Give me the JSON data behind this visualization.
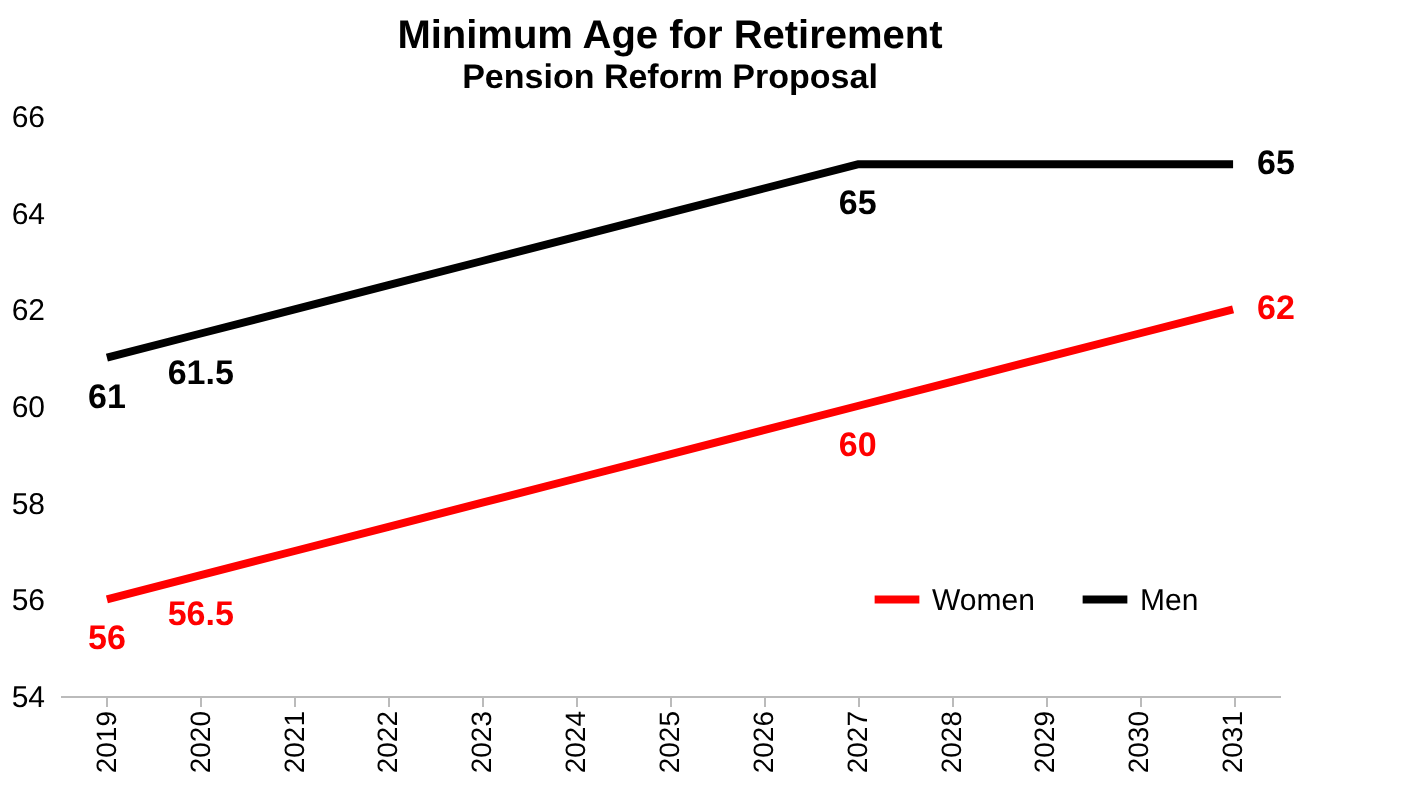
{
  "chart_data": {
    "type": "line",
    "title": "Minimum Age for Retirement",
    "subtitle": "Pension Reform Proposal",
    "categories": [
      "2019",
      "2020",
      "2021",
      "2022",
      "2023",
      "2024",
      "2025",
      "2026",
      "2027",
      "2028",
      "2029",
      "2030",
      "2031"
    ],
    "series": [
      {
        "name": "Women",
        "color": "#ff0000",
        "values": [
          56,
          56.5,
          57,
          57.5,
          58,
          58.5,
          59,
          59.5,
          60,
          60.5,
          61,
          61.5,
          62
        ],
        "value_labels": [
          "56",
          "56.5",
          null,
          null,
          null,
          null,
          null,
          null,
          "60",
          null,
          null,
          null,
          "62"
        ]
      },
      {
        "name": "Men",
        "color": "#000000",
        "values": [
          61,
          61.5,
          62,
          62.5,
          63,
          63.5,
          64,
          64.5,
          65,
          65,
          65,
          65,
          65
        ],
        "value_labels": [
          "61",
          "61.5",
          null,
          null,
          null,
          null,
          null,
          null,
          "65",
          null,
          null,
          null,
          "65"
        ]
      }
    ],
    "ylim": [
      54,
      66
    ],
    "yticks": [
      54,
      56,
      58,
      60,
      62,
      64,
      66
    ],
    "grid": false,
    "legend": "bottom right",
    "marker": "none",
    "line_style": "solid"
  }
}
